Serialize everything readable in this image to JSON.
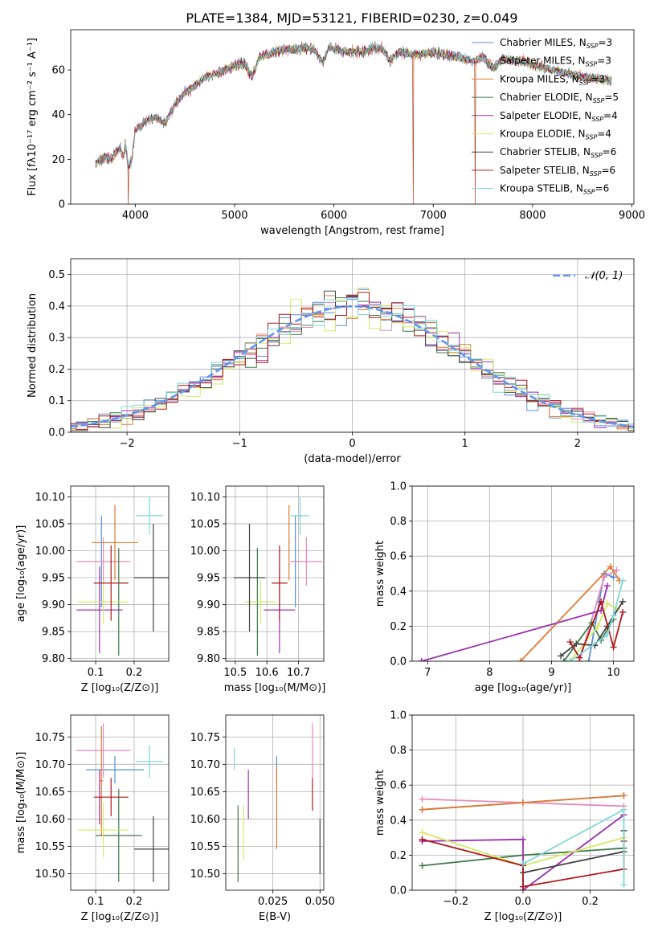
{
  "title": "PLATE=1384, MJD=53121, FIBERID=0230, z=0.049",
  "colors": {
    "Chabrier MILES": "#5a8fd6",
    "Salpeter MILES": "#e58ab8",
    "Kroupa MILES": "#e07b2f",
    "Chabrier ELODIE": "#3f7a4a",
    "Salpeter ELODIE": "#9b2fb0",
    "Kroupa ELODIE": "#d6e868",
    "Chabrier STELIB": "#444444",
    "Salpeter STELIB": "#b01818",
    "Kroupa STELIB": "#7fd8d8"
  },
  "chart_data": [
    {
      "id": "spectrum",
      "type": "line",
      "xlabel": "wavelength [Angstrom, rest frame]",
      "ylabel": "Flux [fλ10⁻¹⁷ erg cm⁻² s⁻¹ A⁻¹]",
      "xlim": [
        3350,
        9020
      ],
      "ylim": [
        0,
        78
      ],
      "xticks": [
        4000,
        5000,
        6000,
        7000,
        8000,
        9000
      ],
      "yticks": [
        0,
        20,
        40,
        60
      ],
      "grid": false,
      "legend_position": "lower-right",
      "legend": [
        {
          "name": "Chabrier MILES",
          "nssp": "3"
        },
        {
          "name": "Salpeter MILES",
          "nssp": "3"
        },
        {
          "name": "Kroupa MILES",
          "nssp": "3"
        },
        {
          "name": "Chabrier ELODIE",
          "nssp": "5"
        },
        {
          "name": "Salpeter ELODIE",
          "nssp": "4"
        },
        {
          "name": "Kroupa ELODIE",
          "nssp": "4"
        },
        {
          "name": "Chabrier STELIB",
          "nssp": "6"
        },
        {
          "name": "Salpeter STELIB",
          "nssp": "6"
        },
        {
          "name": "Kroupa STELIB",
          "nssp": "6"
        }
      ],
      "continuum": [
        [
          3600,
          18
        ],
        [
          3650,
          20
        ],
        [
          3700,
          21
        ],
        [
          3750,
          20
        ],
        [
          3800,
          23
        ],
        [
          3850,
          25
        ],
        [
          3880,
          21
        ],
        [
          3900,
          27
        ],
        [
          3930,
          17
        ],
        [
          3960,
          19
        ],
        [
          4000,
          33
        ],
        [
          4100,
          37
        ],
        [
          4200,
          39
        ],
        [
          4300,
          36
        ],
        [
          4400,
          45
        ],
        [
          4500,
          50
        ],
        [
          4600,
          53
        ],
        [
          4700,
          57
        ],
        [
          4800,
          58
        ],
        [
          4900,
          60
        ],
        [
          5000,
          62
        ],
        [
          5100,
          63
        ],
        [
          5175,
          57
        ],
        [
          5250,
          66
        ],
        [
          5400,
          68
        ],
        [
          5500,
          69
        ],
        [
          5600,
          69
        ],
        [
          5700,
          70
        ],
        [
          5800,
          69
        ],
        [
          5890,
          63
        ],
        [
          5950,
          70
        ],
        [
          6100,
          68
        ],
        [
          6300,
          68
        ],
        [
          6400,
          70
        ],
        [
          6500,
          69
        ],
        [
          6563,
          64
        ],
        [
          6650,
          68
        ],
        [
          6800,
          67
        ],
        [
          7000,
          68
        ],
        [
          7200,
          66
        ],
        [
          7400,
          64
        ],
        [
          7500,
          66
        ],
        [
          7600,
          61
        ],
        [
          7700,
          65
        ],
        [
          7900,
          64
        ],
        [
          8100,
          61
        ],
        [
          8300,
          59
        ],
        [
          8500,
          57
        ],
        [
          8700,
          56
        ],
        [
          8800,
          55
        ]
      ],
      "spikes": [
        {
          "x": 3930,
          "depth": 0
        },
        {
          "x": 6800,
          "depth": 0
        },
        {
          "x": 7420,
          "depth": 0
        }
      ]
    },
    {
      "id": "residuals",
      "type": "histogram",
      "xlabel": "(data-model)/error",
      "ylabel": "Normed distribution",
      "xlim": [
        -2.5,
        2.5
      ],
      "ylim": [
        0,
        0.55
      ],
      "xticks": [
        -2,
        -1,
        0,
        1,
        2
      ],
      "yticks": [
        0.0,
        0.1,
        0.2,
        0.3,
        0.4,
        0.5
      ],
      "grid": true,
      "legend_position": "top-right",
      "legend": [
        "𝒩(0, 1)"
      ],
      "bin_width": 0.1
    },
    {
      "id": "age_vs_Z",
      "type": "errorbar",
      "xlabel": "Z [log₁₀(Z/Z⊙)]",
      "ylabel": "age  [log₁₀(age/yr)]",
      "xlim": [
        0.035,
        0.29
      ],
      "ylim": [
        9.795,
        10.12
      ],
      "xticks": [
        0.1,
        0.2
      ],
      "yticks": [
        9.8,
        9.85,
        9.9,
        9.95,
        10.0,
        10.05,
        10.1
      ],
      "grid": true,
      "points": [
        {
          "model": "Chabrier MILES",
          "x": 0.115,
          "xerr": 0.002,
          "y": 9.98,
          "yerr": 0.085
        },
        {
          "model": "Salpeter MILES",
          "x": 0.12,
          "xerr": 0.07,
          "y": 9.98,
          "yerr": 0.045
        },
        {
          "model": "Kroupa MILES",
          "x": 0.15,
          "xerr": 0.06,
          "y": 10.015,
          "yerr": 0.07
        },
        {
          "model": "Chabrier ELODIE",
          "x": 0.16,
          "xerr": 0.002,
          "y": 9.905,
          "yerr": 0.1
        },
        {
          "model": "Salpeter ELODIE",
          "x": 0.11,
          "xerr": 0.06,
          "y": 9.89,
          "yerr": 0.08
        },
        {
          "model": "Kroupa ELODIE",
          "x": 0.12,
          "xerr": 0.065,
          "y": 9.905,
          "yerr": 0.04
        },
        {
          "model": "Chabrier STELIB",
          "x": 0.25,
          "xerr": 0.05,
          "y": 9.95,
          "yerr": 0.1
        },
        {
          "model": "Salpeter STELIB",
          "x": 0.14,
          "xerr": 0.045,
          "y": 9.94,
          "yerr": 0.07
        },
        {
          "model": "Kroupa STELIB",
          "x": 0.24,
          "xerr": 0.035,
          "y": 10.065,
          "yerr": 0.035
        }
      ]
    },
    {
      "id": "age_vs_mass",
      "type": "errorbar",
      "xlabel": "mass [log₁₀(M/M⊙)]",
      "ylabel": "",
      "xlim": [
        10.47,
        10.78
      ],
      "ylim": [
        9.795,
        10.12
      ],
      "xticks": [
        10.5,
        10.6,
        10.7
      ],
      "yticks": [
        9.8,
        9.85,
        9.9,
        9.95,
        10.0,
        10.05,
        10.1
      ],
      "grid": true,
      "points": [
        {
          "model": "Chabrier MILES",
          "x": 10.69,
          "xerr": 0.002,
          "y": 9.98,
          "yerr": 0.085
        },
        {
          "model": "Salpeter MILES",
          "x": 10.725,
          "xerr": 0.05,
          "y": 9.98,
          "yerr": 0.045
        },
        {
          "model": "Kroupa MILES",
          "x": 10.67,
          "xerr": 0.002,
          "y": 10.015,
          "yerr": 0.07
        },
        {
          "model": "Chabrier ELODIE",
          "x": 10.57,
          "xerr": 0.002,
          "y": 9.905,
          "yerr": 0.1
        },
        {
          "model": "Salpeter ELODIE",
          "x": 10.64,
          "xerr": 0.05,
          "y": 9.89,
          "yerr": 0.08
        },
        {
          "model": "Kroupa ELODIE",
          "x": 10.58,
          "xerr": 0.05,
          "y": 9.905,
          "yerr": 0.04
        },
        {
          "model": "Chabrier STELIB",
          "x": 10.545,
          "xerr": 0.05,
          "y": 9.95,
          "yerr": 0.1
        },
        {
          "model": "Salpeter STELIB",
          "x": 10.64,
          "xerr": 0.025,
          "y": 9.94,
          "yerr": 0.07
        },
        {
          "model": "Kroupa STELIB",
          "x": 10.705,
          "xerr": 0.03,
          "y": 10.065,
          "yerr": 0.035
        }
      ]
    },
    {
      "id": "weight_vs_age",
      "type": "line",
      "xlabel": "age  [log₁₀(age/yr)]",
      "ylabel": "mass weight",
      "xlim": [
        6.75,
        10.33
      ],
      "ylim": [
        0,
        1.0
      ],
      "xticks": [
        7,
        8,
        9,
        10
      ],
      "yticks": [
        0.0,
        0.2,
        0.4,
        0.6,
        0.8,
        1.0
      ],
      "grid": true,
      "series": [
        {
          "model": "Chabrier MILES",
          "points": [
            [
              9.6,
              0.0
            ],
            [
              9.85,
              0.5
            ],
            [
              10.0,
              0.48
            ]
          ]
        },
        {
          "model": "Salpeter MILES",
          "points": [
            [
              9.45,
              0.0
            ],
            [
              9.85,
              0.48
            ],
            [
              10.05,
              0.52
            ]
          ]
        },
        {
          "model": "Kroupa MILES",
          "points": [
            [
              8.5,
              0.0
            ],
            [
              9.95,
              0.54
            ],
            [
              10.1,
              0.46
            ]
          ]
        },
        {
          "model": "Chabrier ELODIE",
          "points": [
            [
              9.2,
              0.0
            ],
            [
              9.65,
              0.22
            ],
            [
              9.8,
              0.12
            ],
            [
              10.0,
              0.24
            ]
          ]
        },
        {
          "model": "Salpeter ELODIE",
          "points": [
            [
              6.9,
              0.0
            ],
            [
              9.8,
              0.29
            ],
            [
              9.9,
              0.43
            ]
          ]
        },
        {
          "model": "Kroupa ELODIE",
          "points": [
            [
              9.3,
              0.0
            ],
            [
              9.75,
              0.2
            ],
            [
              9.9,
              0.33
            ],
            [
              10.05,
              0.3
            ]
          ]
        },
        {
          "model": "Chabrier STELIB",
          "points": [
            [
              9.15,
              0.03
            ],
            [
              9.4,
              0.1
            ],
            [
              9.7,
              0.09
            ],
            [
              9.9,
              0.2
            ],
            [
              10.15,
              0.34
            ]
          ]
        },
        {
          "model": "Salpeter STELIB",
          "points": [
            [
              9.3,
              0.11
            ],
            [
              9.45,
              0.02
            ],
            [
              9.8,
              0.34
            ],
            [
              10.0,
              0.08
            ],
            [
              10.15,
              0.28
            ]
          ]
        },
        {
          "model": "Kroupa STELIB",
          "points": [
            [
              9.3,
              0.0
            ],
            [
              9.9,
              0.15
            ],
            [
              10.0,
              0.26
            ],
            [
              10.15,
              0.46
            ]
          ]
        }
      ]
    },
    {
      "id": "mass_vs_Z",
      "type": "errorbar",
      "xlabel": "Z [log₁₀(Z/Z⊙)]",
      "ylabel": "mass [log₁₀(M/M⊙)]",
      "xlim": [
        0.035,
        0.29
      ],
      "ylim": [
        10.47,
        10.79
      ],
      "xticks": [
        0.1,
        0.2
      ],
      "yticks": [
        10.5,
        10.55,
        10.6,
        10.65,
        10.7,
        10.75
      ],
      "grid": true,
      "points": [
        {
          "model": "Chabrier MILES",
          "x": 0.15,
          "xerr": 0.075,
          "y": 10.69,
          "yerr": 0.025
        },
        {
          "model": "Salpeter MILES",
          "x": 0.12,
          "xerr": 0.07,
          "y": 10.725,
          "yerr": 0.05
        },
        {
          "model": "Kroupa MILES",
          "x": 0.115,
          "xerr": 0.005,
          "y": 10.67,
          "yerr": 0.1
        },
        {
          "model": "Chabrier ELODIE",
          "x": 0.16,
          "xerr": 0.06,
          "y": 10.57,
          "yerr": 0.085
        },
        {
          "model": "Salpeter ELODIE",
          "x": 0.11,
          "xerr": 0.002,
          "y": 10.64,
          "yerr": 0.05
        },
        {
          "model": "Kroupa ELODIE",
          "x": 0.12,
          "xerr": 0.065,
          "y": 10.58,
          "yerr": 0.05
        },
        {
          "model": "Chabrier STELIB",
          "x": 0.25,
          "xerr": 0.05,
          "y": 10.545,
          "yerr": 0.06
        },
        {
          "model": "Salpeter STELIB",
          "x": 0.14,
          "xerr": 0.045,
          "y": 10.64,
          "yerr": 0.035
        },
        {
          "model": "Kroupa STELIB",
          "x": 0.24,
          "xerr": 0.035,
          "y": 10.705,
          "yerr": 0.03
        }
      ]
    },
    {
      "id": "mass_vs_ebv",
      "type": "errorbar",
      "xlabel": "E(B-V)",
      "ylabel": "",
      "xlim": [
        0.0,
        0.052
      ],
      "ylim": [
        10.47,
        10.79
      ],
      "xticks": [
        0.025,
        0.05
      ],
      "xtick_labels": [
        "0.025",
        "0.050"
      ],
      "yticks": [
        10.5,
        10.55,
        10.6,
        10.65,
        10.7,
        10.75
      ],
      "grid": true,
      "points": [
        {
          "model": "Chabrier MILES",
          "x": 0.027,
          "xerr": 0.0,
          "y": 10.69,
          "yerr": 0.025
        },
        {
          "model": "Salpeter MILES",
          "x": 0.046,
          "xerr": 0.0,
          "y": 10.725,
          "yerr": 0.05
        },
        {
          "model": "Kroupa MILES",
          "x": 0.027,
          "xerr": 0.0,
          "y": 10.62,
          "yerr": 0.075
        },
        {
          "model": "Chabrier ELODIE",
          "x": 0.0065,
          "xerr": 0.0,
          "y": 10.555,
          "yerr": 0.07
        },
        {
          "model": "Salpeter ELODIE",
          "x": 0.012,
          "xerr": 0.0,
          "y": 10.645,
          "yerr": 0.045
        },
        {
          "model": "Kroupa ELODIE",
          "x": 0.0095,
          "xerr": 0.0,
          "y": 10.575,
          "yerr": 0.05
        },
        {
          "model": "Chabrier STELIB",
          "x": 0.05,
          "xerr": 0.0,
          "y": 10.55,
          "yerr": 0.05
        },
        {
          "model": "Salpeter STELIB",
          "x": 0.046,
          "xerr": 0.0,
          "y": 10.645,
          "yerr": 0.03
        },
        {
          "model": "Kroupa STELIB",
          "x": 0.0045,
          "xerr": 0.0,
          "y": 10.71,
          "yerr": 0.02
        }
      ]
    },
    {
      "id": "weight_vs_Z",
      "type": "line",
      "xlabel": "Z [log₁₀(Z/Z⊙)]",
      "ylabel": "mass weight",
      "xlim": [
        -0.33,
        0.33
      ],
      "ylim": [
        0,
        1.0
      ],
      "xticks": [
        -0.2,
        0.0,
        0.2
      ],
      "xtick_labels": [
        "−0.2",
        "0.0",
        "0.2"
      ],
      "yticks": [
        0.0,
        0.2,
        0.4,
        0.6,
        0.8,
        1.0
      ],
      "grid": true,
      "series": [
        {
          "model": "Chabrier MILES",
          "points": [
            [
              -0.3,
              0.46
            ],
            [
              0.0,
              0.5
            ],
            [
              0.3,
              0.54
            ]
          ]
        },
        {
          "model": "Salpeter MILES",
          "points": [
            [
              -0.3,
              0.52
            ],
            [
              0.0,
              0.5
            ],
            [
              0.3,
              0.48
            ]
          ]
        },
        {
          "model": "Kroupa MILES",
          "points": [
            [
              -0.3,
              0.46
            ],
            [
              0.0,
              0.5
            ],
            [
              0.3,
              0.54
            ]
          ]
        },
        {
          "model": "Chabrier ELODIE",
          "points": [
            [
              -0.3,
              0.14
            ],
            [
              0.0,
              0.2
            ],
            [
              0.3,
              0.24
            ]
          ]
        },
        {
          "model": "Salpeter ELODIE",
          "points": [
            [
              -0.3,
              0.28
            ],
            [
              0.0,
              0.29
            ],
            [
              0.0,
              0.0
            ],
            [
              0.3,
              0.43
            ]
          ]
        },
        {
          "model": "Kroupa ELODIE",
          "points": [
            [
              -0.3,
              0.33
            ],
            [
              0.0,
              0.14
            ],
            [
              0.3,
              0.3
            ]
          ]
        },
        {
          "model": "Chabrier STELIB",
          "points": [
            [
              0.0,
              0.1
            ],
            [
              0.3,
              0.22
            ],
            [
              0.3,
              0.34
            ]
          ]
        },
        {
          "model": "Salpeter STELIB",
          "points": [
            [
              -0.3,
              0.29
            ],
            [
              0.0,
              0.14
            ],
            [
              0.0,
              0.02
            ],
            [
              0.3,
              0.12
            ],
            [
              0.3,
              0.28
            ]
          ]
        },
        {
          "model": "Kroupa STELIB",
          "points": [
            [
              0.0,
              0.15
            ],
            [
              0.3,
              0.46
            ],
            [
              0.3,
              0.03
            ]
          ]
        }
      ]
    }
  ]
}
